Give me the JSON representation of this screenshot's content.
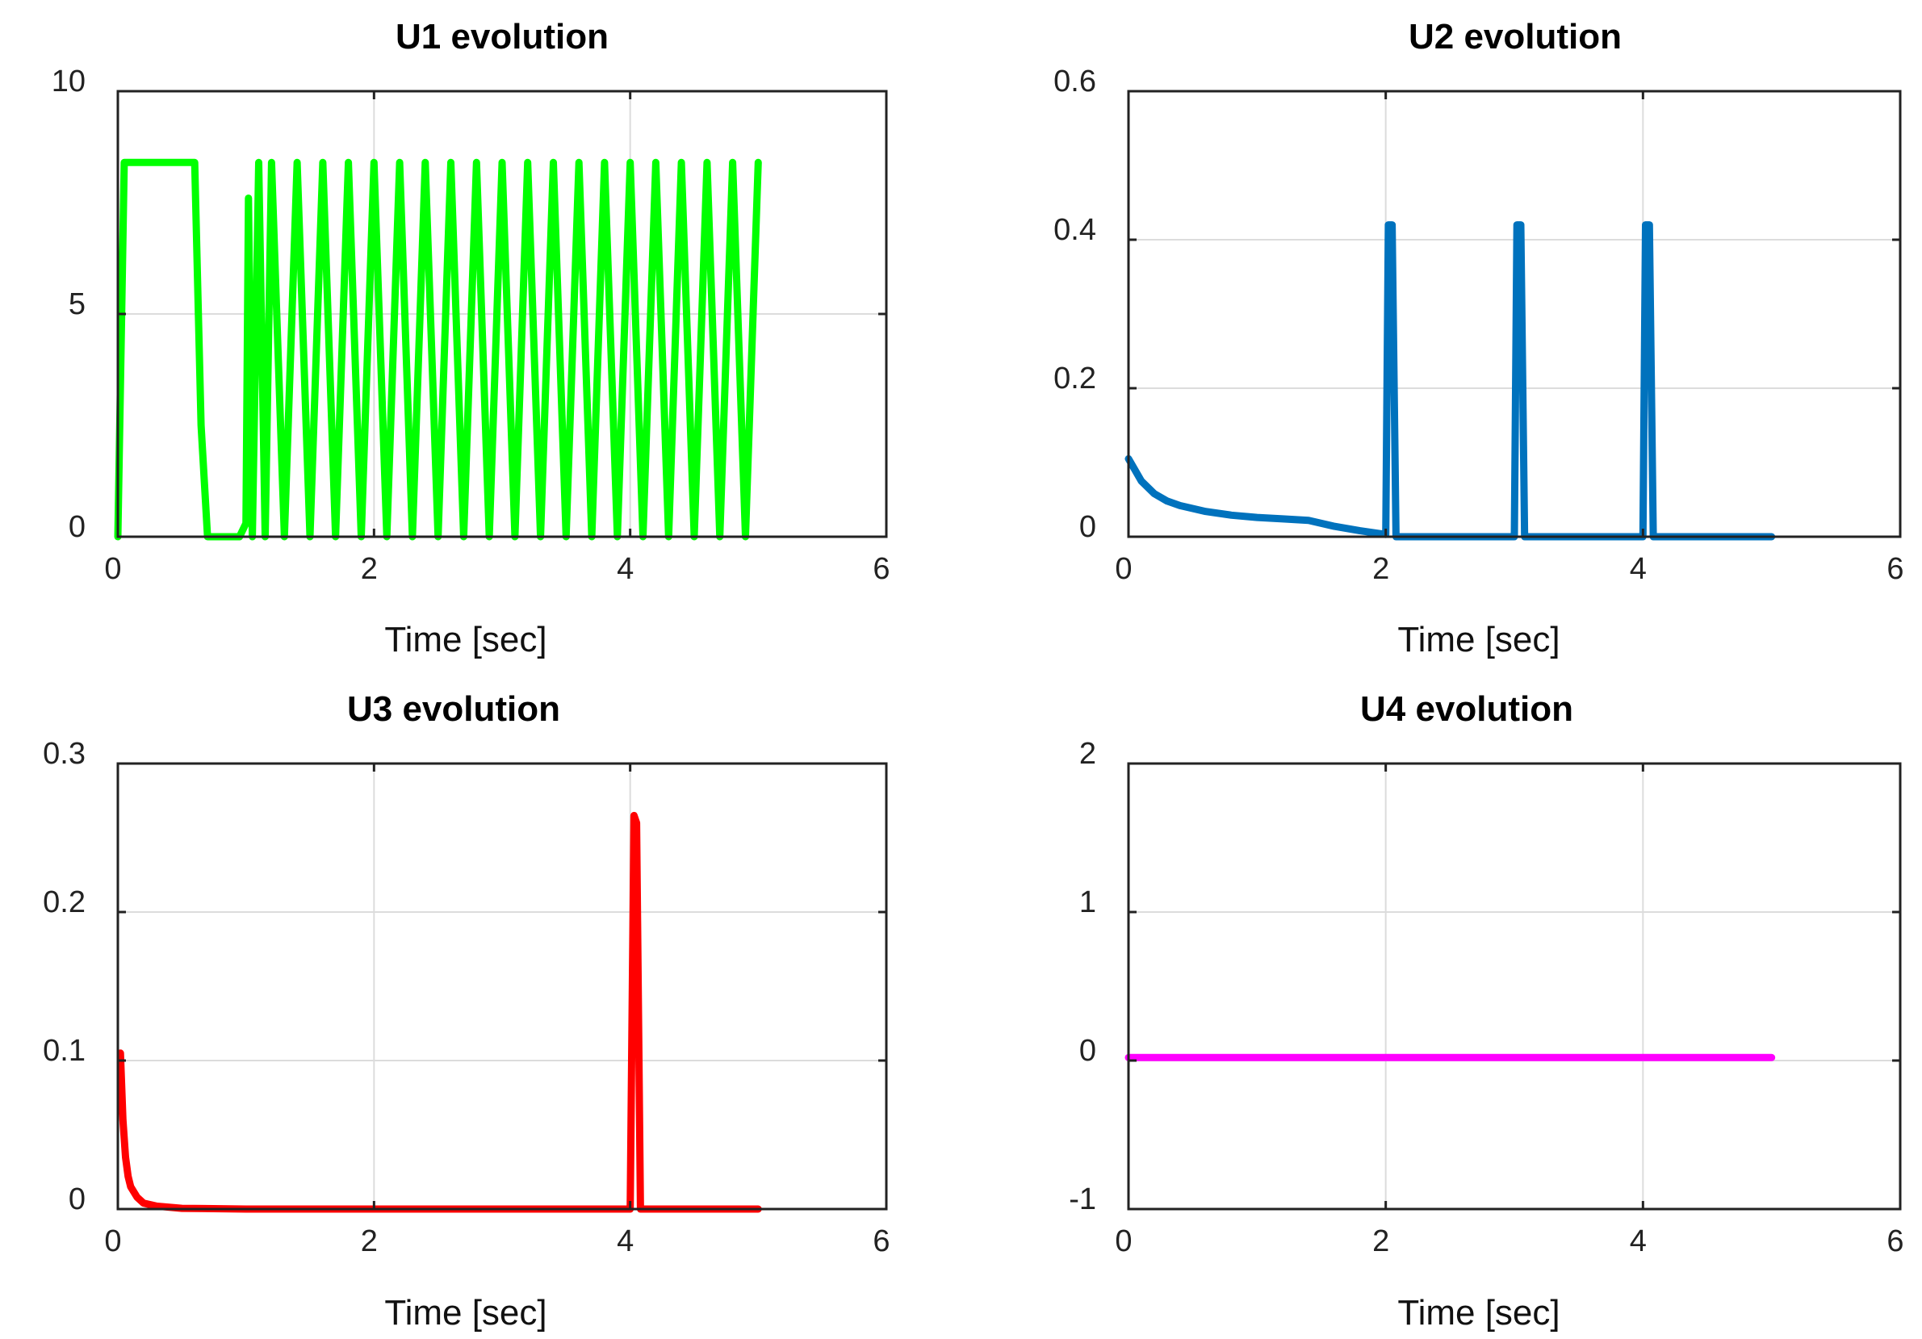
{
  "chart_data": [
    {
      "type": "line",
      "title": "U1 evolution",
      "xlabel": "Time [sec]",
      "ylabel": "",
      "xlim": [
        0,
        6
      ],
      "ylim": [
        0,
        10
      ],
      "xticks": [
        "0",
        "2",
        "4",
        "6"
      ],
      "yticks": [
        "0",
        "5",
        "10"
      ],
      "grid": true,
      "color": "#00ff00",
      "series": [
        {
          "name": "U1",
          "x": [
            0,
            0.05,
            0.6,
            0.65,
            0.7,
            0.95,
            1.0,
            1.02,
            1.05,
            1.1,
            1.15,
            1.2,
            1.3,
            1.4,
            1.5,
            1.6,
            1.7,
            1.8,
            1.9,
            2.0,
            2.1,
            2.2,
            2.3,
            2.4,
            2.5,
            2.6,
            2.7,
            2.8,
            2.9,
            3.0,
            3.1,
            3.2,
            3.3,
            3.4,
            3.5,
            3.6,
            3.7,
            3.8,
            3.9,
            4.0,
            4.1,
            4.2,
            4.3,
            4.4,
            4.5,
            4.6,
            4.7,
            4.8,
            4.9,
            5.0
          ],
          "values": [
            0,
            8.4,
            8.4,
            2.5,
            0,
            0,
            0.3,
            7.6,
            0,
            8.4,
            0,
            8.4,
            0,
            8.4,
            0,
            8.4,
            0,
            8.4,
            0,
            8.4,
            0,
            8.4,
            0,
            8.4,
            0,
            8.4,
            0,
            8.4,
            0,
            8.4,
            0,
            8.4,
            0,
            8.4,
            0,
            8.4,
            0,
            8.4,
            0,
            8.4,
            0,
            8.4,
            0,
            8.4,
            0,
            8.4,
            0,
            8.4,
            0,
            8.4
          ]
        }
      ]
    },
    {
      "type": "line",
      "title": "U2 evolution",
      "xlabel": "Time [sec]",
      "ylabel": "",
      "xlim": [
        0,
        6
      ],
      "ylim": [
        0,
        0.6
      ],
      "xticks": [
        "0",
        "2",
        "4",
        "6"
      ],
      "yticks": [
        "0",
        "0.2",
        "0.4",
        "0.6"
      ],
      "grid": true,
      "color": "#0072bd",
      "series": [
        {
          "name": "U2",
          "x": [
            0,
            0.1,
            0.2,
            0.3,
            0.4,
            0.6,
            0.8,
            1.0,
            1.2,
            1.4,
            1.6,
            1.8,
            2.0,
            2.02,
            2.05,
            2.08,
            2.2,
            3.0,
            3.02,
            3.05,
            3.08,
            3.2,
            4.0,
            4.02,
            4.05,
            4.08,
            4.2,
            5.0
          ],
          "values": [
            0.105,
            0.075,
            0.058,
            0.048,
            0.042,
            0.034,
            0.029,
            0.026,
            0.024,
            0.022,
            0.014,
            0.008,
            0.003,
            0.42,
            0.42,
            0.0,
            0.0,
            0.0,
            0.42,
            0.42,
            0.0,
            0.0,
            0.0,
            0.42,
            0.42,
            0.0,
            0.0,
            0.0
          ]
        }
      ]
    },
    {
      "type": "line",
      "title": "U3 evolution",
      "xlabel": "Time [sec]",
      "ylabel": "",
      "xlim": [
        0,
        6
      ],
      "ylim": [
        0,
        0.3
      ],
      "xticks": [
        "0",
        "2",
        "4",
        "6"
      ],
      "yticks": [
        "0",
        "0.1",
        "0.2",
        "0.3"
      ],
      "grid": true,
      "color": "#ff0000",
      "series": [
        {
          "name": "U3",
          "x": [
            0.02,
            0.04,
            0.06,
            0.08,
            0.1,
            0.15,
            0.2,
            0.3,
            0.5,
            1.0,
            2.0,
            3.0,
            3.95,
            4.0,
            4.03,
            4.05,
            4.08,
            5.0
          ],
          "values": [
            0.105,
            0.06,
            0.035,
            0.022,
            0.015,
            0.008,
            0.004,
            0.002,
            0.0005,
            0,
            0,
            0,
            0,
            0,
            0.265,
            0.26,
            0,
            0
          ]
        }
      ]
    },
    {
      "type": "line",
      "title": "U4 evolution",
      "xlabel": "Time [sec]",
      "ylabel": "",
      "xlim": [
        0,
        6
      ],
      "ylim": [
        -1,
        2
      ],
      "xticks": [
        "0",
        "2",
        "4",
        "6"
      ],
      "yticks": [
        "-1",
        "0",
        "1",
        "2"
      ],
      "grid": true,
      "color": "#ff00ff",
      "series": [
        {
          "name": "U4",
          "x": [
            0,
            5.0
          ],
          "values": [
            0.02,
            0.02
          ]
        }
      ]
    }
  ]
}
